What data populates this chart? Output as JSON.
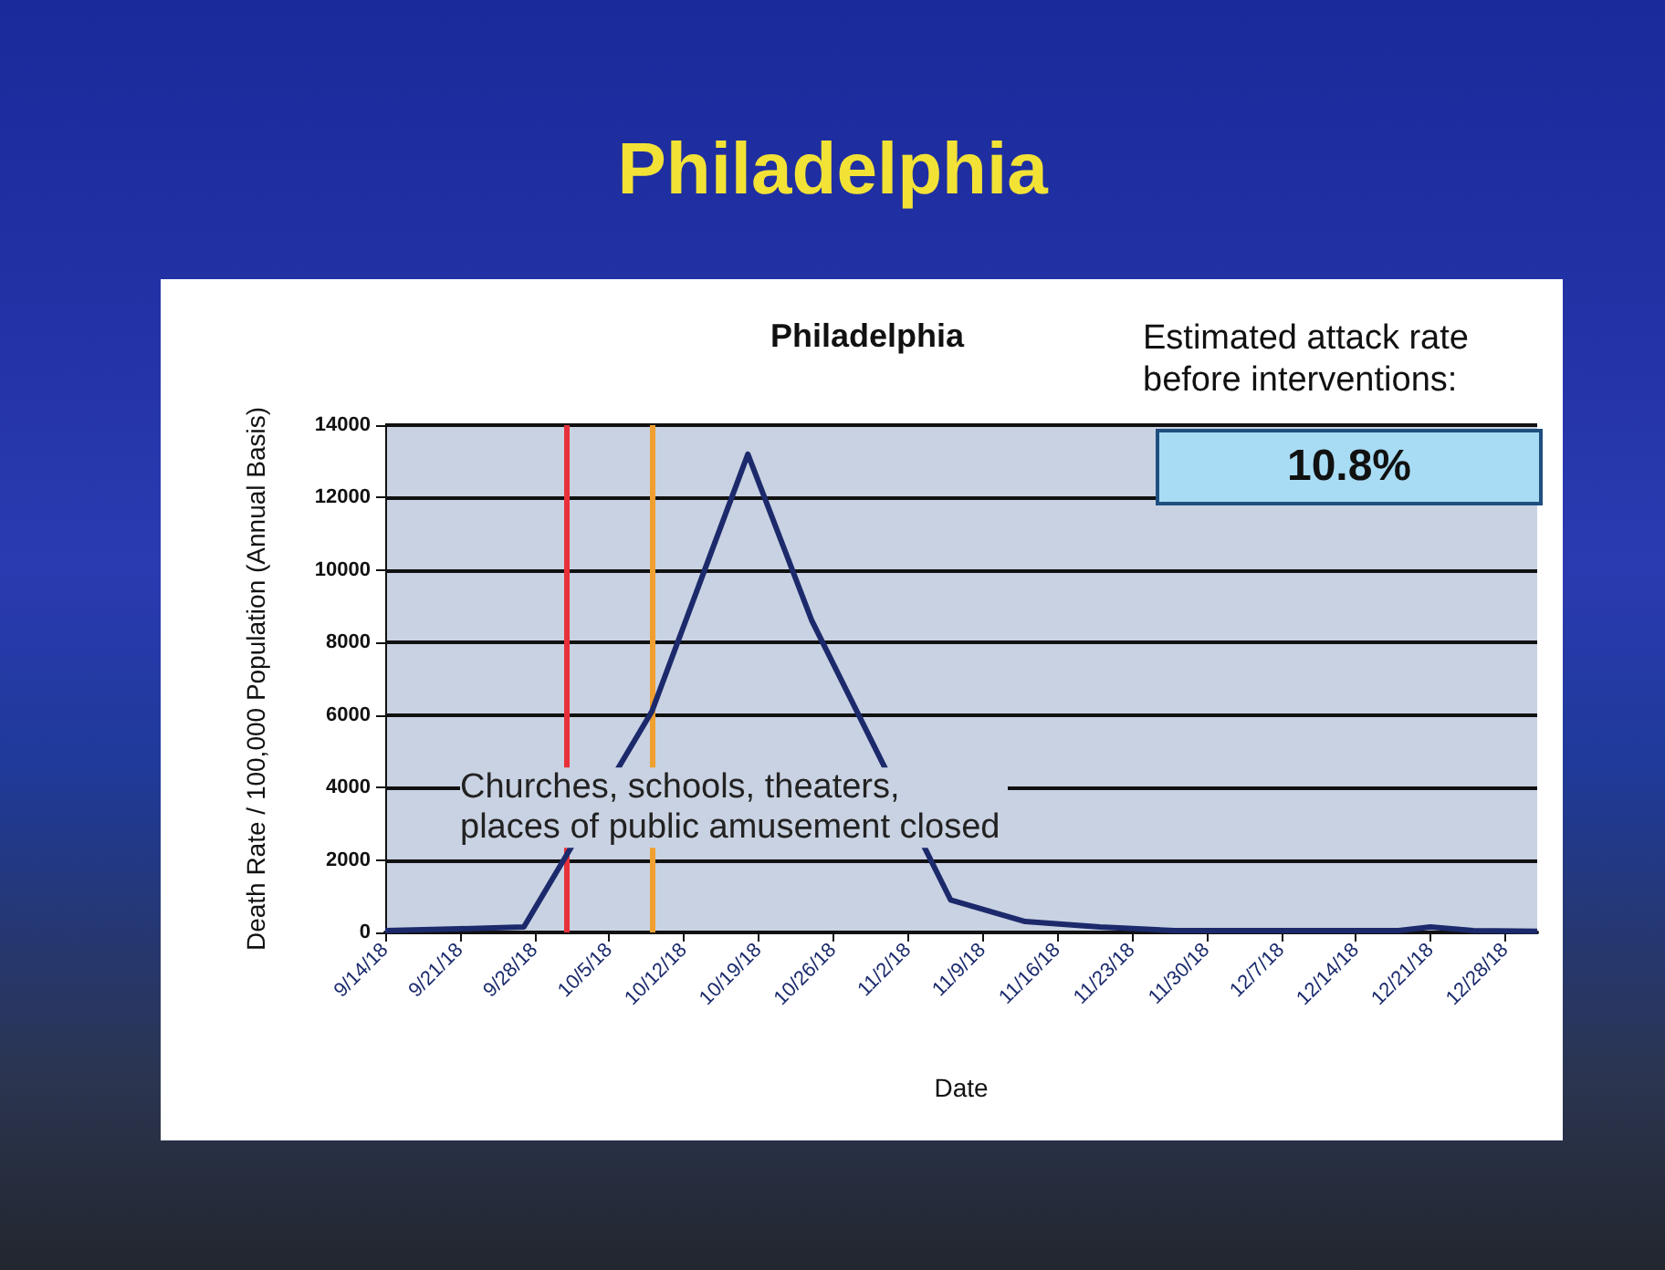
{
  "chart_data": {
    "type": "line",
    "title": "Philadelphia",
    "subtitle": "Philadelphia",
    "xlabel": "Date",
    "ylabel": "Death Rate / 100,000 Population (Annual Basis)",
    "x": [
      "--09-14",
      "--09-21",
      "--09-27",
      "--10-09",
      "--10-18",
      "--10-24",
      "--11-06",
      "--11-13",
      "--11-20",
      "--11-27",
      "--12-18",
      "--12-21",
      "--12-25",
      "--12-31"
    ],
    "series": [
      {
        "color": "#1c2a6c",
        "values": [
          50,
          100,
          150,
          6100,
          13200,
          8600,
          900,
          300,
          150,
          50,
          50,
          150,
          50,
          30
        ]
      }
    ],
    "xlim": [
      "--09-14",
      "--12-31"
    ],
    "xticks": [
      {
        "value": "--09-14",
        "label": "9/14/18"
      },
      {
        "value": "--09-21",
        "label": "9/21/18"
      },
      {
        "value": "--09-28",
        "label": "9/28/18"
      },
      {
        "value": "--10-05",
        "label": "10/5/18"
      },
      {
        "value": "--10-12",
        "label": "10/12/18"
      },
      {
        "value": "--10-19",
        "label": "10/19/18"
      },
      {
        "value": "--10-26",
        "label": "10/26/18"
      },
      {
        "value": "--11-02",
        "label": "11/2/18"
      },
      {
        "value": "--11-09",
        "label": "11/9/18"
      },
      {
        "value": "--11-16",
        "label": "11/16/18"
      },
      {
        "value": "--11-23",
        "label": "11/23/18"
      },
      {
        "value": "--11-30",
        "label": "11/30/18"
      },
      {
        "value": "--12-07",
        "label": "12/7/18"
      },
      {
        "value": "--12-14",
        "label": "12/14/18"
      },
      {
        "value": "--12-21",
        "label": "12/21/18"
      },
      {
        "value": "--12-28",
        "label": "12/28/18"
      }
    ],
    "ylim": [
      0,
      14000
    ],
    "yticks": [
      0,
      2000,
      4000,
      6000,
      8000,
      10000,
      12000,
      14000
    ],
    "grid": "y",
    "marker": "none",
    "line_style": "solid",
    "ref_lines": [
      {
        "axis": "x",
        "value": "--10-01",
        "color": "#e8303a"
      },
      {
        "axis": "x",
        "value": "--10-09",
        "color": "#f0a030"
      }
    ],
    "annotations": [
      "Estimated attack rate before interventions:",
      "10.8%",
      "Churches, schools, theaters, places of public amusement closed"
    ]
  }
}
